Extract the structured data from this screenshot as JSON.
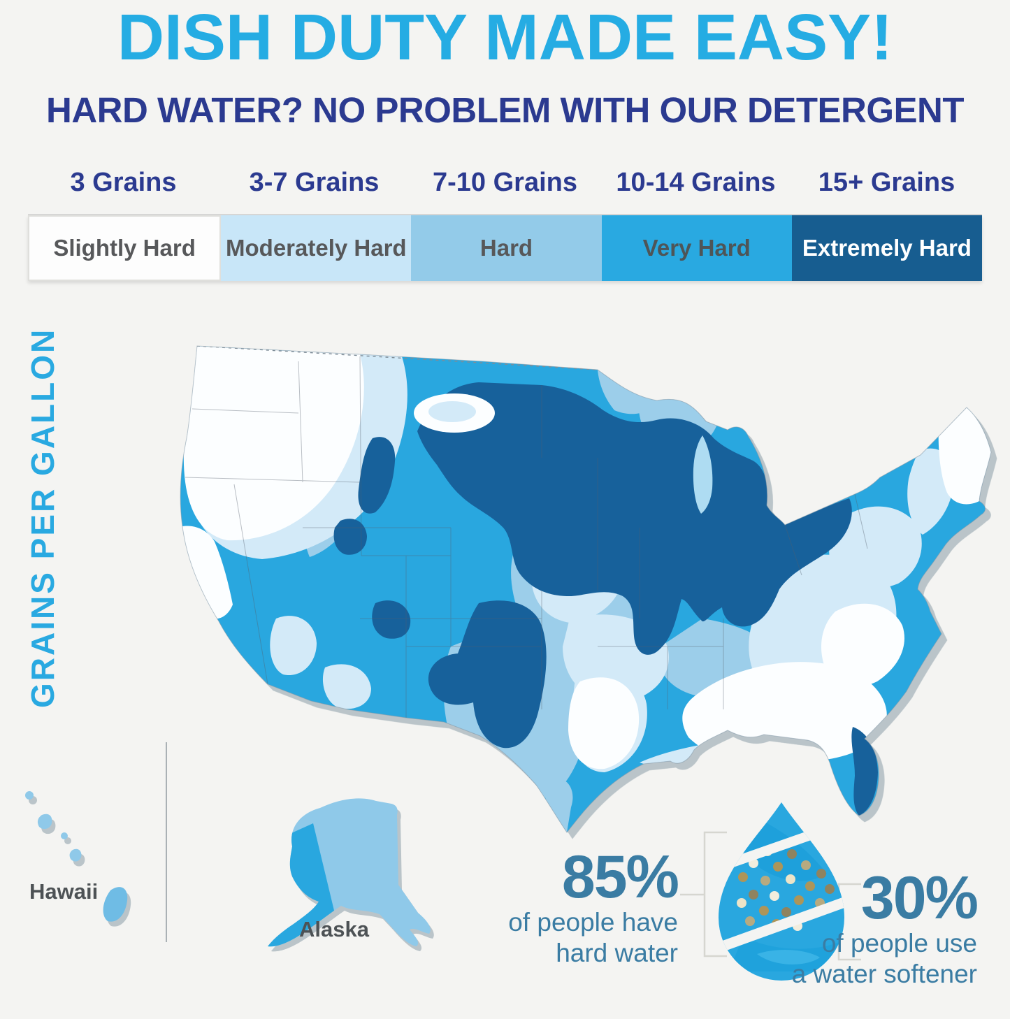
{
  "header": {
    "title": "DISH DUTY MADE EASY!",
    "subtitle": "HARD WATER? NO PROBLEM WITH OUR DETERGENT"
  },
  "legend": {
    "items": [
      {
        "grains": "3 Grains",
        "label": "Slightly Hard",
        "color": "#FDFDFD",
        "text_color": "#57585A"
      },
      {
        "grains": "3-7 Grains",
        "label": "Moderately Hard",
        "color": "#C8E6F8",
        "text_color": "#57585A"
      },
      {
        "grains": "7-10 Grains",
        "label": "Hard",
        "color": "#93CBE9",
        "text_color": "#57585A"
      },
      {
        "grains": "10-14 Grains",
        "label": "Very Hard",
        "color": "#29A9E1",
        "text_color": "#4E5557"
      },
      {
        "grains": "15+ Grains",
        "label": "Extremely Hard",
        "color": "#175D90",
        "text_color": "#FFFFFF"
      }
    ]
  },
  "map": {
    "side_label": "GRAINS PER GALLON",
    "hawaii_label": "Hawaii",
    "alaska_label": "Alaska",
    "palette": {
      "slightly_hard": "#FCFEFF",
      "moderately_hard": "#D3EAF8",
      "hard": "#9CCEEA",
      "very_hard": "#29A7DF",
      "extremely_hard": "#17619B"
    }
  },
  "stats": {
    "hard_water": {
      "value": "85%",
      "line1": "of people have",
      "line2": "hard water"
    },
    "softener": {
      "value": "30%",
      "line1": "of people use",
      "line2": "a water softener"
    }
  },
  "chart_data": {
    "type": "choropleth_map",
    "title": "DISH DUTY MADE EASY!",
    "subtitle": "HARD WATER? NO PROBLEM WITH OUR DETERGENT",
    "region": "United States with Alaska and Hawaii insets",
    "measure": "Water hardness in grains per gallon",
    "classes": [
      {
        "grains": "3",
        "label": "Slightly Hard",
        "color": "#FDFDFD"
      },
      {
        "grains": "3-7",
        "label": "Moderately Hard",
        "color": "#C8E6F8"
      },
      {
        "grains": "7-10",
        "label": "Hard",
        "color": "#93CBE9"
      },
      {
        "grains": "10-14",
        "label": "Very Hard",
        "color": "#29A9E1"
      },
      {
        "grains": "15+",
        "label": "Extremely Hard",
        "color": "#175D90"
      }
    ],
    "callouts": [
      {
        "value": 85,
        "unit": "%",
        "text": "of people have hard water"
      },
      {
        "value": 30,
        "unit": "%",
        "text": "of people use a water softener"
      }
    ],
    "notes": "Hardest water shown across the Upper Midwest, Great Plains, Texas panhandle and Florida east coast; softest along the Pacific Northwest, Southeast and New England."
  }
}
